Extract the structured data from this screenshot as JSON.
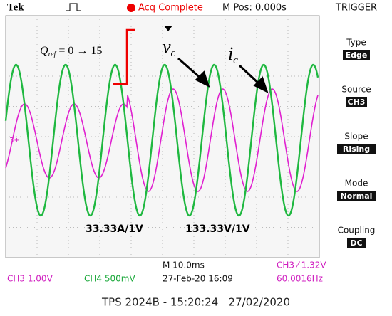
{
  "header": {
    "brand": "Tek",
    "status": "Acq Complete",
    "position": "M Pos: 0.000s",
    "menu_title": "TRIGGER"
  },
  "menu": [
    {
      "label": "Type",
      "value": "Edge"
    },
    {
      "label": "Source",
      "value": "CH3"
    },
    {
      "label": "Slope",
      "value": "Rising"
    },
    {
      "label": "Mode",
      "value": "Normal"
    },
    {
      "label": "Coupling",
      "value": "DC"
    }
  ],
  "annotations": {
    "q_symbol": "Q",
    "q_subscript": "ref",
    "q_text": "= 0 → 15",
    "v_symbol": "v",
    "v_subscript": "c",
    "i_symbol": "i",
    "i_subscript": "c",
    "current_scale": "33.33A/1V",
    "voltage_scale": "133.33V/1V"
  },
  "status": {
    "timebase": "M 10.0ms",
    "trigger": "CH3 ⁄ 1.32V",
    "ch3": "CH3 1.00V",
    "ch4": "CH4 500mV",
    "date": "27-Feb-20 16:09",
    "frequency": "60.0016Hz"
  },
  "caption": "TPS 2024B - 15:20:24   27/02/2020"
}
